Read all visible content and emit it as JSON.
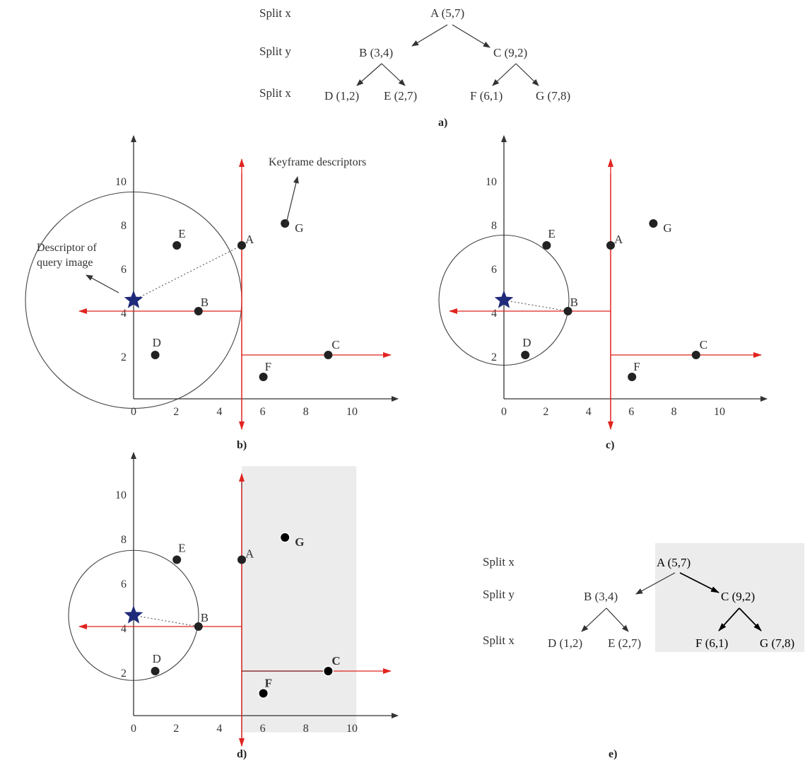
{
  "colors": {
    "axis": "#333333",
    "split_line": "#e0241f",
    "split_line_dark": "#7a1010",
    "query_star": "#1f2a7a",
    "point": "#222222",
    "shade": "#ececec",
    "circle": "#444444"
  },
  "trees": {
    "a": {
      "caption": "a)",
      "level_labels": [
        "Split x",
        "Split y",
        "Split x"
      ],
      "nodes": {
        "A": "A (5,7)",
        "B": "B (3,4)",
        "C": "C (9,2)",
        "D": "D (1,2)",
        "E": "E (2,7)",
        "F": "F (6,1)",
        "G": "G (7,8)"
      }
    },
    "e": {
      "caption": "e)",
      "level_labels": [
        "Split x",
        "Split y",
        "Split x"
      ],
      "nodes": {
        "A": "A (5,7)",
        "B": "B (3,4)",
        "C": "C (9,2)",
        "D": "D (1,2)",
        "E": "E (2,7)",
        "F": "F (6,1)",
        "G": "G (7,8)"
      }
    }
  },
  "chart_data": [
    {
      "panel": "b",
      "type": "scatter",
      "caption": "b)",
      "x_ticks": [
        "0",
        "2",
        "4",
        "6",
        "8",
        "10"
      ],
      "y_ticks": [
        "2",
        "4",
        "6",
        "8",
        "10"
      ],
      "points": [
        {
          "name": "A",
          "x": 5,
          "y": 7
        },
        {
          "name": "B",
          "x": 3,
          "y": 4
        },
        {
          "name": "C",
          "x": 9,
          "y": 2
        },
        {
          "name": "D",
          "x": 1,
          "y": 2
        },
        {
          "name": "E",
          "x": 2,
          "y": 7
        },
        {
          "name": "F",
          "x": 6,
          "y": 1
        },
        {
          "name": "G",
          "x": 7,
          "y": 8
        }
      ],
      "query": {
        "x": 0,
        "y": 4.5
      },
      "nearest": "A",
      "annotations": [
        "Keyframe descriptors",
        "Descriptor of",
        "query image"
      ]
    },
    {
      "panel": "c",
      "type": "scatter",
      "caption": "c)",
      "x_ticks": [
        "0",
        "2",
        "4",
        "6",
        "8",
        "10"
      ],
      "y_ticks": [
        "2",
        "4",
        "6",
        "8",
        "10"
      ],
      "query": {
        "x": 0,
        "y": 4.5
      },
      "nearest": "B"
    },
    {
      "panel": "d",
      "type": "scatter",
      "caption": "d)",
      "x_ticks": [
        "0",
        "2",
        "4",
        "6",
        "8",
        "10"
      ],
      "y_ticks": [
        "2",
        "4",
        "6",
        "8",
        "10"
      ],
      "query": {
        "x": 0,
        "y": 4.5
      },
      "nearest": "B",
      "pruned_region": "x > 5"
    }
  ]
}
